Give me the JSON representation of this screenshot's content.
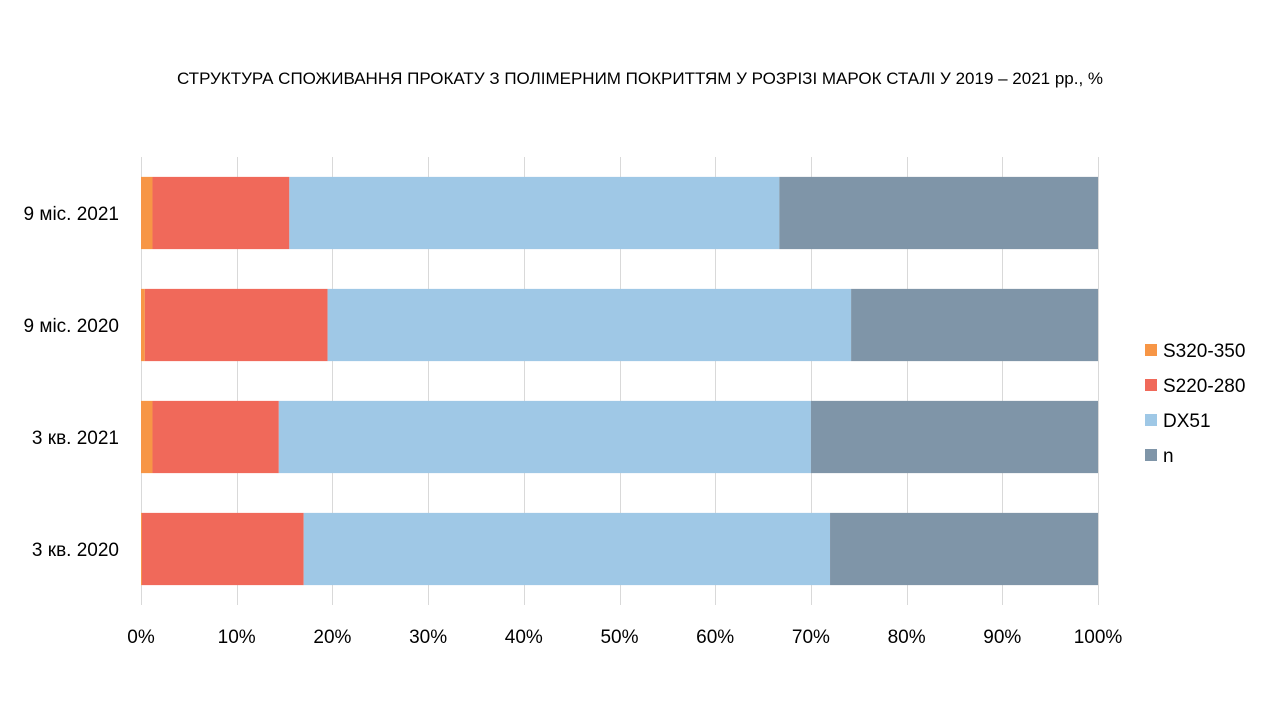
{
  "chart_data": {
    "type": "bar",
    "orientation": "horizontal",
    "stacked": "percent",
    "title": "СТРУКТУРА СПОЖИВАННЯ ПРОКАТУ З ПОЛІМЕРНИМ ПОКРИТТЯМ У РОЗРІЗІ МАРОК СТАЛІ У 2019 – 2021 рр., %",
    "categories": [
      "9 міс. 2021",
      "9 міс. 2020",
      "3 кв. 2021",
      "3 кв. 2020"
    ],
    "series": [
      {
        "name": "S320-350",
        "color": "#F79646",
        "values": [
          1.2,
          0.4,
          1.2,
          0.1
        ]
      },
      {
        "name": "S220-280",
        "color": "#F0695A",
        "values": [
          14.3,
          19.1,
          13.2,
          16.9
        ]
      },
      {
        "name": "DX51",
        "color": "#9FC8E6",
        "values": [
          51.2,
          54.7,
          55.6,
          55.0
        ]
      },
      {
        "name": "n",
        "color": "#7F95A8",
        "values": [
          33.3,
          25.8,
          30.0,
          28.0
        ]
      }
    ],
    "x_ticks": [
      "0%",
      "10%",
      "20%",
      "30%",
      "40%",
      "50%",
      "60%",
      "70%",
      "80%",
      "90%",
      "100%"
    ],
    "xlim": [
      0,
      100
    ],
    "grid": true,
    "gridline_color": "#D9D9D9",
    "legend_position": "right"
  }
}
